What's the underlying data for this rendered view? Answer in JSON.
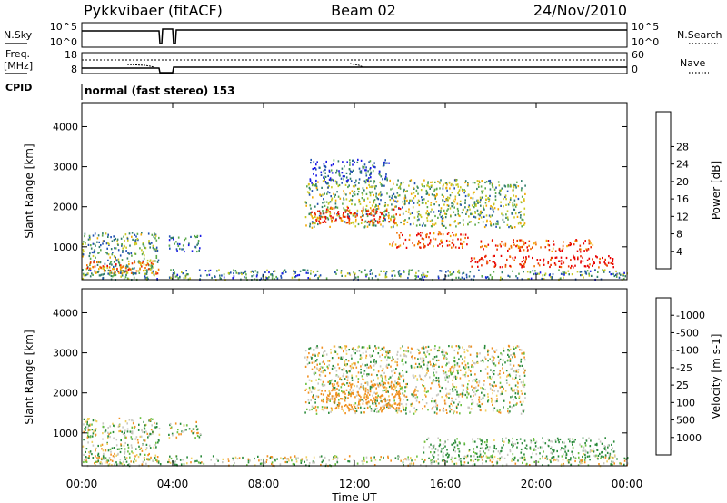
{
  "header": {
    "station": "Pykkvibaer (fitACF)",
    "beam": "Beam 02",
    "date": "24/Nov/2010"
  },
  "noise_panel": {
    "left_label": "N.Sky",
    "right_label": "N.Search",
    "left_ticks": [
      "10^5",
      "10^0"
    ],
    "right_ticks": [
      "10^5",
      "10^0"
    ]
  },
  "freq_panel": {
    "left_label_line1": "Freq.",
    "left_label_line2": "[MHz]",
    "right_label": "Nave",
    "left_ticks": [
      "18",
      "8"
    ],
    "right_ticks": [
      "60",
      "0"
    ]
  },
  "cpid": {
    "label": "CPID",
    "mode": "normal (fast stereo) 153"
  },
  "time_axis": {
    "label": "Time UT",
    "ticks": [
      "00:00",
      "04:00",
      "08:00",
      "12:00",
      "16:00",
      "20:00",
      "00:00"
    ],
    "range_hours": [
      0,
      24
    ]
  },
  "chart_data": [
    {
      "type": "heatmap",
      "title": "",
      "xlabel": "",
      "ylabel": "Slant Range [km]",
      "ylim": [
        180,
        4600
      ],
      "yticks": [
        "1000",
        "2000",
        "3000",
        "4000"
      ],
      "colorbar": {
        "label": "Power [dB]",
        "ticks": [
          "4",
          "8",
          "12",
          "16",
          "20",
          "24",
          "28"
        ],
        "colors": [
          "#1a1ae6",
          "#1e4fb0",
          "#2f7d6a",
          "#5aa84a",
          "#c8c820",
          "#f0a800",
          "#f07000",
          "#e83000",
          "#e80000"
        ]
      },
      "data_gap_hours": [
        3.45,
        3.75
      ],
      "regions": [
        {
          "t": [
            0.0,
            3.4
          ],
          "r": [
            300,
            1400
          ],
          "level": 0.35
        },
        {
          "t": [
            0.2,
            3.4
          ],
          "r": [
            350,
            650
          ],
          "level": 0.75
        },
        {
          "t": [
            3.8,
            5.2
          ],
          "r": [
            900,
            1300
          ],
          "level": 0.2
        },
        {
          "t": [
            9.8,
            19.5
          ],
          "r": [
            1500,
            2700
          ],
          "level": 0.4
        },
        {
          "t": [
            10.0,
            14.0
          ],
          "r": [
            1600,
            2000
          ],
          "level": 0.85
        },
        {
          "t": [
            13.5,
            17.0
          ],
          "r": [
            1000,
            1400
          ],
          "level": 0.8
        },
        {
          "t": [
            17.0,
            23.5
          ],
          "r": [
            500,
            800
          ],
          "level": 0.95
        },
        {
          "t": [
            17.5,
            22.5
          ],
          "r": [
            900,
            1200
          ],
          "level": 0.8
        },
        {
          "t": [
            10.0,
            13.5
          ],
          "r": [
            2600,
            3200
          ],
          "level": 0.2
        },
        {
          "t": [
            0.0,
            24.0
          ],
          "r": [
            200,
            450
          ],
          "level": 0.3
        }
      ]
    },
    {
      "type": "heatmap",
      "title": "",
      "xlabel": "Time UT",
      "ylabel": "Slant Range [km]",
      "ylim": [
        180,
        4600
      ],
      "yticks": [
        "1000",
        "2000",
        "3000",
        "4000"
      ],
      "colorbar": {
        "label": "Velocity [m s-1]",
        "ticks": [
          "1000",
          "500",
          "100",
          "25",
          "-25",
          "-100",
          "-500",
          "-1000"
        ],
        "colors": [
          "#1e3c96",
          "#2e6e9a",
          "#2a8a3a",
          "#6ac040",
          "#c8c8c0",
          "#f0d060",
          "#f09020",
          "#f05000",
          "#e80000"
        ]
      },
      "data_gap_hours": [
        3.45,
        3.75
      ],
      "regions": [
        {
          "t": [
            0.0,
            3.4
          ],
          "r": [
            300,
            1400
          ],
          "value": 30
        },
        {
          "t": [
            3.8,
            5.2
          ],
          "r": [
            900,
            1300
          ],
          "value": 0
        },
        {
          "t": [
            9.8,
            19.5
          ],
          "r": [
            1500,
            3200
          ],
          "value": 0
        },
        {
          "t": [
            10.5,
            14.0
          ],
          "r": [
            1600,
            2300
          ],
          "value": -300
        },
        {
          "t": [
            15.0,
            23.5
          ],
          "r": [
            400,
            900
          ],
          "value": 150
        },
        {
          "t": [
            0.0,
            24.0
          ],
          "r": [
            200,
            450
          ],
          "value": 20
        }
      ]
    }
  ]
}
